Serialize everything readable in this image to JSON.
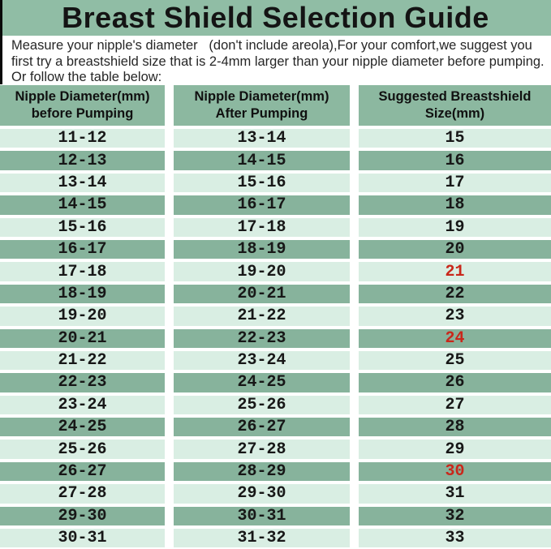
{
  "title": "Breast Shield Selection Guide",
  "intro": {
    "line1": "Measure your nipple's diameter   (don't include areola),For your comfort,we suggest you",
    "line2": "first try a breastshield size that is 2-4mm larger than your nipple diameter before pumping.",
    "line3": "Or follow the table below:"
  },
  "colors": {
    "title_bg": "#90bda5",
    "header_bg": "#8cb8a0",
    "row_dark": "#87b39c",
    "row_light": "#d9eee3",
    "highlight_red": "#c9271b"
  },
  "table": {
    "headers": [
      {
        "line1": "Nipple Diameter(mm)",
        "line2": "before Pumping"
      },
      {
        "line1": "Nipple Diameter(mm)",
        "line2": "After Pumping"
      },
      {
        "line1": "Suggested Breastshield",
        "line2": "Size(mm)"
      }
    ],
    "rows": [
      {
        "before": "11-12",
        "after": "13-14",
        "size": "15",
        "red": false
      },
      {
        "before": "12-13",
        "after": "14-15",
        "size": "16",
        "red": false
      },
      {
        "before": "13-14",
        "after": "15-16",
        "size": "17",
        "red": false
      },
      {
        "before": "14-15",
        "after": "16-17",
        "size": "18",
        "red": false
      },
      {
        "before": "15-16",
        "after": "17-18",
        "size": "19",
        "red": false
      },
      {
        "before": "16-17",
        "after": "18-19",
        "size": "20",
        "red": false
      },
      {
        "before": "17-18",
        "after": "19-20",
        "size": "21",
        "red": true
      },
      {
        "before": "18-19",
        "after": "20-21",
        "size": "22",
        "red": false
      },
      {
        "before": "19-20",
        "after": "21-22",
        "size": "23",
        "red": false
      },
      {
        "before": "20-21",
        "after": "22-23",
        "size": "24",
        "red": true
      },
      {
        "before": "21-22",
        "after": "23-24",
        "size": "25",
        "red": false
      },
      {
        "before": "22-23",
        "after": "24-25",
        "size": "26",
        "red": false
      },
      {
        "before": "23-24",
        "after": "25-26",
        "size": "27",
        "red": false
      },
      {
        "before": "24-25",
        "after": "26-27",
        "size": "28",
        "red": false
      },
      {
        "before": "25-26",
        "after": "27-28",
        "size": "29",
        "red": false
      },
      {
        "before": "26-27",
        "after": "28-29",
        "size": "30",
        "red": true
      },
      {
        "before": "27-28",
        "after": "29-30",
        "size": "31",
        "red": false
      },
      {
        "before": "29-30",
        "after": "30-31",
        "size": "32",
        "red": false
      },
      {
        "before": "30-31",
        "after": "31-32",
        "size": "33",
        "red": false
      }
    ]
  }
}
